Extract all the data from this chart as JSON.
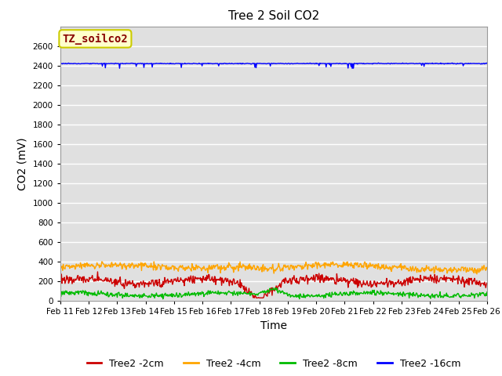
{
  "title": "Tree 2 Soil CO2",
  "ylabel": "CO2 (mV)",
  "xlabel": "Time",
  "annotation": "TZ_soilco2",
  "ylim": [
    0,
    2800
  ],
  "yticks": [
    0,
    200,
    400,
    600,
    800,
    1000,
    1200,
    1400,
    1600,
    1800,
    2000,
    2200,
    2400,
    2600
  ],
  "x_tick_labels": [
    "Feb 11",
    "Feb 12",
    "Feb 13",
    "Feb 14",
    "Feb 15",
    "Feb 16",
    "Feb 17",
    "Feb 18",
    "Feb 19",
    "Feb 20",
    "Feb 21",
    "Feb 22",
    "Feb 23",
    "Feb 24",
    "Feb 25",
    "Feb 26"
  ],
  "colors": {
    "red": "#CC0000",
    "orange": "#FFA500",
    "green": "#00BB00",
    "blue": "#0000FF"
  },
  "bg_color": "#E0E0E0",
  "fig_bg": "#FFFFFF",
  "legend_labels": [
    "Tree2 -2cm",
    "Tree2 -4cm",
    "Tree2 -8cm",
    "Tree2 -16cm"
  ],
  "annotation_facecolor": "#FFFFCC",
  "annotation_edgecolor": "#CCCC00",
  "annotation_textcolor": "#880000",
  "seed": 42
}
